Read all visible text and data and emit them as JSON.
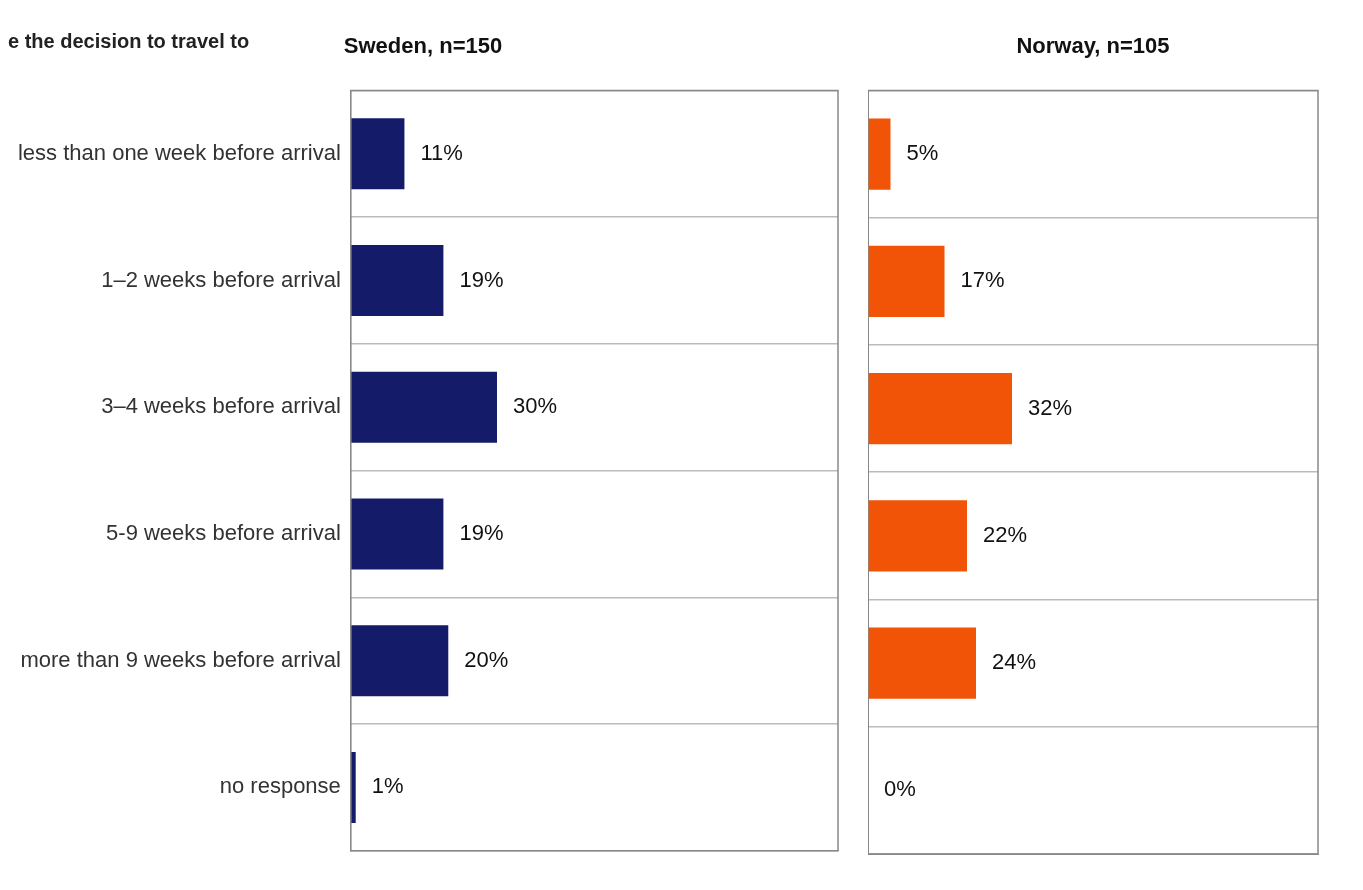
{
  "chart_data": [
    {
      "type": "bar",
      "orientation": "horizontal",
      "title": "Sweden, n=150",
      "annotations": [
        "e the decision to travel to"
      ],
      "categories": [
        "less than one week before arrival",
        "1–2 weeks before arrival",
        "3–4 weeks before arrival",
        "5-9 weeks before arrival",
        "more than 9 weeks before arrival",
        "no response"
      ],
      "values": [
        11,
        19,
        30,
        19,
        20,
        1
      ],
      "color": "#141c6a",
      "value_labels": [
        "11%",
        "19%",
        "30%",
        "19%",
        "20%",
        "1%"
      ],
      "xlim": [
        0,
        100
      ],
      "grid": "y",
      "tick_labels": "y"
    },
    {
      "type": "bar",
      "orientation": "horizontal",
      "title": "Norway, n=105",
      "categories": [
        null,
        null,
        null,
        null,
        null,
        null
      ],
      "values": [
        5,
        17,
        32,
        22,
        24,
        0
      ],
      "color": "#f25407",
      "value_labels": [
        "5%",
        "17%",
        "32%",
        "22%",
        "24%",
        "0%"
      ],
      "xlim": [
        0,
        100
      ],
      "grid": "y",
      "tick_labels": false
    }
  ]
}
